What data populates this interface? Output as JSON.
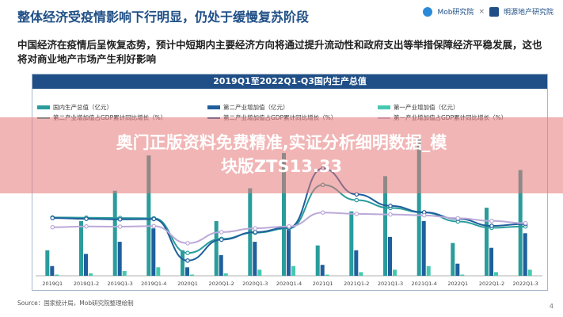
{
  "header": {
    "title": "整体经济受疫情影响下行明显，仍处于缓慢复苏阶段",
    "logo_left": "Mob研究院",
    "logo_sep": "×",
    "logo_right": "明源地产研究院"
  },
  "lead": "中国经济在疫情后呈恢复态势，预计中短期内主要经济方向将通过提升流动性和政府支出等举措保障经济平稳发展，这也将对商业地产市场产生利好影响",
  "banner": {
    "line1": "奥门正版资料免费精准,实证分析细明数据_模",
    "line2": "块版ZTS13.33"
  },
  "source": "Source：国家统计局，Mob研究院整理绘制",
  "page_number": "4",
  "colors": {
    "primary_bar": "#2a9c9c",
    "secondary_bar": "#1f5f9c",
    "tertiary_bar": "#46c8b0",
    "primary_line": "#2a9c9c",
    "secondary_line": "#1f5f9c",
    "tertiary_line": "#bba9d8",
    "title_bar": "#1f4f86"
  },
  "chart_data": {
    "type": "bar",
    "title": "2019Q1至2022Q1-Q3国内生产总值",
    "legend": [
      {
        "name": "国内生产总值（亿元）",
        "kind": "bar",
        "color_key": "primary_bar"
      },
      {
        "name": "第二产业增加值（亿元）",
        "kind": "bar",
        "color_key": "secondary_bar"
      },
      {
        "name": "第一产业增加值（亿元）",
        "kind": "bar",
        "color_key": "tertiary_bar"
      },
      {
        "name": "第二产业增加值占GDP累计同比增长（%）",
        "kind": "line",
        "color_key": "primary_line"
      },
      {
        "name": "第二产业增加值占GDP累计同比增长（%）",
        "kind": "line",
        "color_key": "secondary_line"
      },
      {
        "name": "第一产业增加值占GDP累计同比增长（%）",
        "kind": "line",
        "color_key": "tertiary_line"
      }
    ],
    "categories": [
      "2019Q1",
      "2019Q1-2",
      "2019Q1-3",
      "2019Q1-4",
      "2020Q1",
      "2020Q1-2",
      "2020Q1-3",
      "2020Q1-4",
      "2021Q1",
      "2021Q1-2",
      "2021Q1-3",
      "2021Q1-4",
      "2022Q1",
      "2022Q1-2",
      "2022Q1-3"
    ],
    "tick_labels": [
      "2019Q1",
      "2019Q1-2",
      "2019Q1-3",
      "2019Q1-4",
      "2020Q1",
      "2020Q1-2",
      "2020Q1-3",
      "2020Q1-4",
      "2021Q1",
      "2021Q1-2",
      "2021Q1-3",
      "2021Q1-4",
      "2022Q1",
      "2022Q1-2",
      "2022Q1-3"
    ],
    "bar_series": [
      {
        "values": [
          21,
          45,
          70,
          99,
          21,
          45,
          72,
          101,
          25,
          53,
          82,
          114,
          27,
          56,
          87
        ]
      },
      {
        "values": [
          8,
          18,
          28,
          39,
          7,
          17,
          28,
          38,
          9,
          21,
          32,
          45,
          10,
          23,
          35
        ]
      },
      {
        "values": [
          1,
          2,
          4,
          7,
          1,
          2,
          5,
          8,
          1,
          3,
          5,
          8,
          1,
          3,
          5
        ]
      }
    ],
    "line_series": [
      {
        "values": [
          6.3,
          6.2,
          6.1,
          6.0,
          -6.8,
          -1.6,
          0.7,
          2.3,
          18.3,
          12.7,
          9.8,
          8.1,
          4.8,
          2.5,
          3.0
        ]
      },
      {
        "values": [
          6.1,
          5.8,
          5.6,
          5.7,
          -9.6,
          -1.9,
          0.9,
          2.6,
          24.4,
          14.8,
          10.6,
          8.2,
          5.8,
          3.2,
          3.9
        ]
      },
      {
        "values": [
          2.7,
          3.0,
          2.9,
          3.1,
          -3.2,
          0.9,
          2.3,
          3.0,
          8.1,
          7.6,
          7.4,
          7.1,
          6.0,
          5.0,
          4.2
        ]
      }
    ],
    "bar_ylim": [
      0,
      120
    ],
    "line_ylim": [
      -12,
      26
    ],
    "grid": false,
    "legend_position": "top"
  }
}
